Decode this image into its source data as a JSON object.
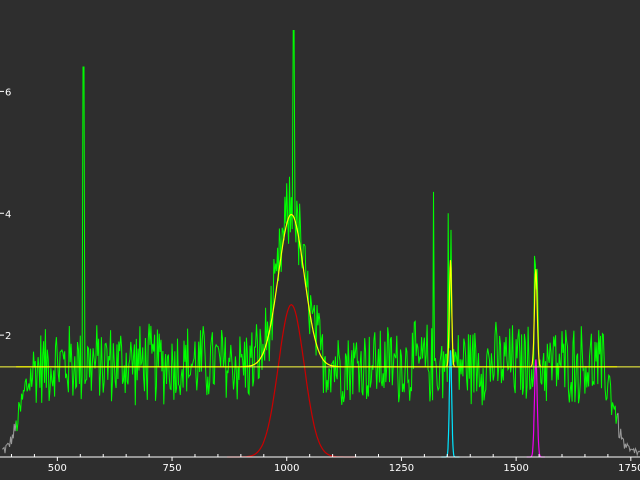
{
  "chart_data": {
    "type": "line",
    "title": "",
    "xlabel": "",
    "ylabel": "",
    "xlim": [
      375,
      1770
    ],
    "ylim": [
      0,
      7.5
    ],
    "x_ticks": [
      500,
      750,
      1000,
      1250,
      1500,
      1750
    ],
    "y_ticks": [
      2,
      4,
      6
    ],
    "x_tick_labels": [
      "500",
      "750",
      "1000",
      "1250",
      "1500",
      "1750"
    ],
    "y_tick_labels": [
      "2",
      "4",
      "6"
    ],
    "grid": false,
    "colors": {
      "background": "#2e2e2e",
      "axis": "#ffffff",
      "spectrum_outside": "#9a9a9a",
      "spectrum_fit_region": "#00ff00",
      "baseline": "#ffff40",
      "total_fit": "#ffff00",
      "component_1": "#cc0000",
      "component_2": "#00e5ff",
      "component_3": "#ee00ee"
    },
    "spectrum": {
      "x_range": [
        380,
        1770
      ],
      "fit_region": [
        410,
        1720
      ],
      "baseline_level": 1.48,
      "noise_amplitude": 0.75,
      "spikes": [
        {
          "x": 557,
          "y": 6.4
        },
        {
          "x": 1015,
          "y": 7.0
        },
        {
          "x": 1320,
          "y": 4.35
        },
        {
          "x": 1352,
          "y": 4.0
        },
        {
          "x": 1540,
          "y": 3.3
        }
      ]
    },
    "baseline": {
      "y": 1.48
    },
    "peaks": [
      {
        "center": 1010,
        "height": 2.5,
        "width": 28,
        "color_key": "component_1"
      },
      {
        "center": 1357,
        "height": 1.75,
        "width": 2.5,
        "color_key": "component_2"
      },
      {
        "center": 1543,
        "height": 1.6,
        "width": 3.0,
        "color_key": "component_3"
      }
    ]
  }
}
